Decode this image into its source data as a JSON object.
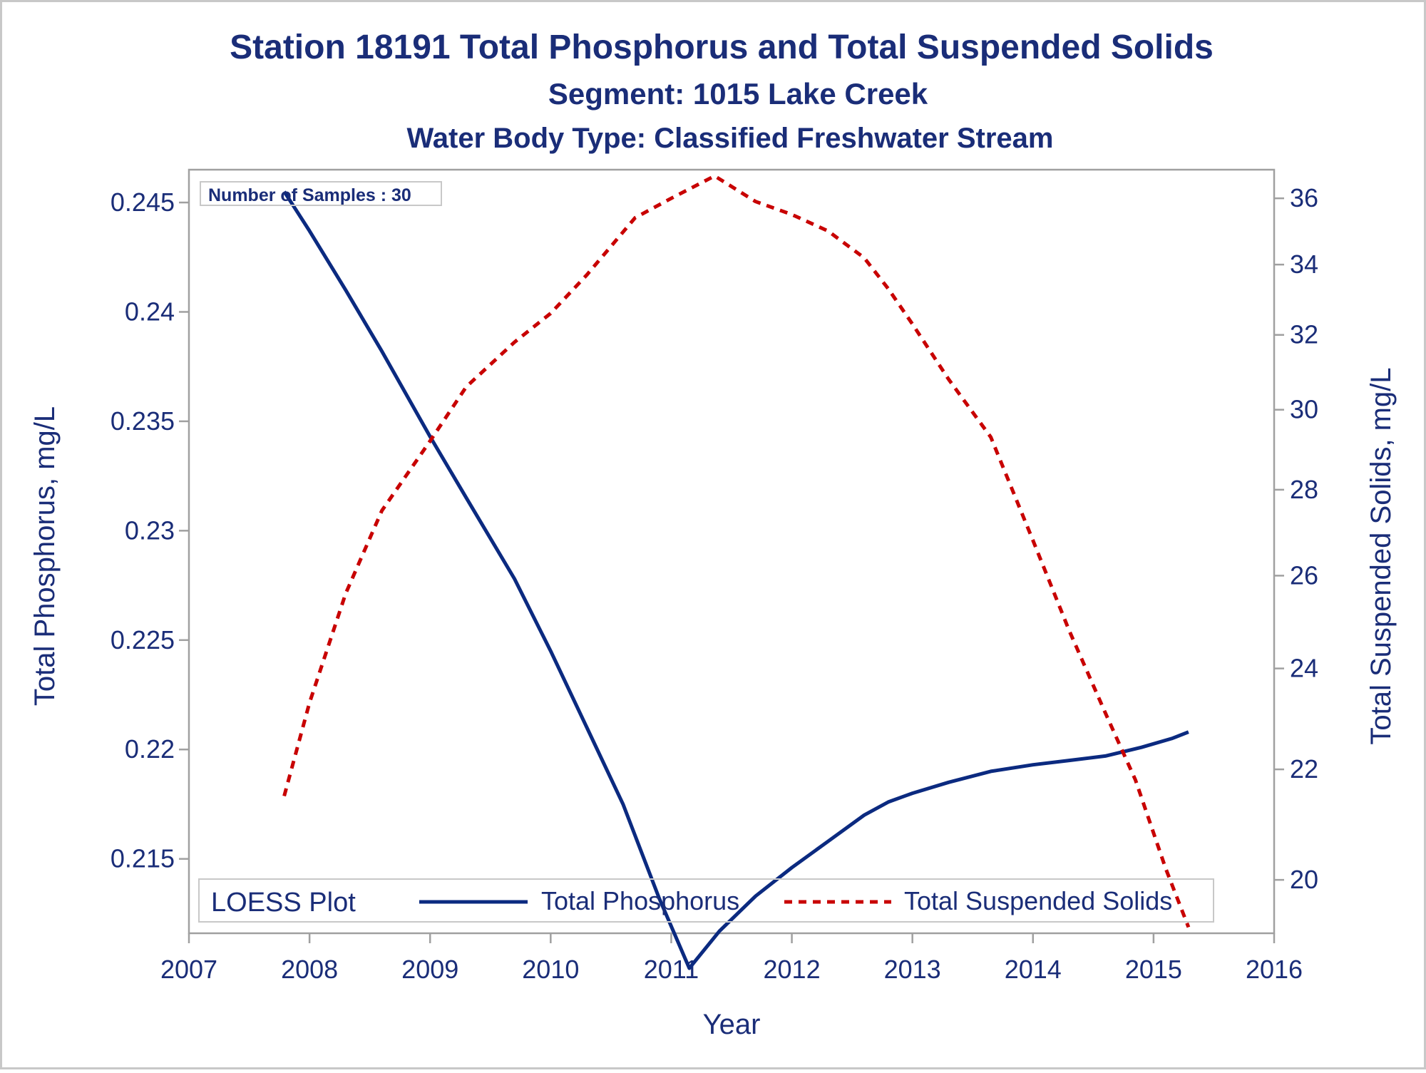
{
  "chart_data": {
    "type": "line",
    "title": "Station 18191  Total Phosphorus and Total Suspended Solids",
    "subtitle": "Segment: 1015  Lake Creek",
    "subtitle2": "Water Body Type: Classified Freshwater Stream",
    "xlabel": "Year",
    "ylabel_left": "Total Phosphorus, mg/L",
    "ylabel_right": "Total Suspended Solids, mg/L",
    "x_ticks": [
      "2007",
      "2008",
      "2009",
      "2010",
      "2011",
      "2012",
      "2013",
      "2014",
      "2015",
      "2016"
    ],
    "y_left_ticks": [
      "0.215",
      "0.22",
      "0.225",
      "0.23",
      "0.235",
      "0.24",
      "0.245"
    ],
    "y_right_ticks": [
      "20",
      "22",
      "24",
      "26",
      "28",
      "30",
      "32",
      "34",
      "36"
    ],
    "xlim": [
      2007,
      2016
    ],
    "ylim_left": [
      0.2116,
      0.2465
    ],
    "ylim_right": [
      19.1,
      36.9
    ],
    "right_axis_scale": "log",
    "annotation": "Number of Samples : 30",
    "legend": {
      "title": "LOESS Plot",
      "position": "bottom-inside",
      "entries": [
        "Total Phosphorus",
        "Total Suspended Solids"
      ]
    },
    "colors": {
      "text": "#1a2d78",
      "series1": "#0b2a80",
      "series2": "#c80000",
      "frame": "#a0a0a0"
    },
    "series": [
      {
        "name": "Total Phosphorus",
        "axis": "left",
        "style": "solid",
        "points": [
          [
            2007.79,
            0.2455
          ],
          [
            2008.0,
            0.2437
          ],
          [
            2008.3,
            0.241
          ],
          [
            2008.6,
            0.2382
          ],
          [
            2009.0,
            0.2343
          ],
          [
            2009.3,
            0.2315
          ],
          [
            2009.7,
            0.2278
          ],
          [
            2010.0,
            0.2245
          ],
          [
            2010.3,
            0.221
          ],
          [
            2010.6,
            0.2175
          ],
          [
            2010.9,
            0.2132
          ],
          [
            2011.15,
            0.21
          ],
          [
            2011.4,
            0.2117
          ],
          [
            2011.7,
            0.2133
          ],
          [
            2012.0,
            0.2146
          ],
          [
            2012.3,
            0.2158
          ],
          [
            2012.6,
            0.217
          ],
          [
            2012.8,
            0.2176
          ],
          [
            2013.0,
            0.218
          ],
          [
            2013.3,
            0.2185
          ],
          [
            2013.65,
            0.219
          ],
          [
            2014.0,
            0.2193
          ],
          [
            2014.3,
            0.2195
          ],
          [
            2014.6,
            0.2197
          ],
          [
            2014.9,
            0.2201
          ],
          [
            2015.15,
            0.2205
          ],
          [
            2015.29,
            0.2208
          ]
        ]
      },
      {
        "name": "Total Suspended Solids",
        "axis": "right",
        "style": "dashed",
        "points": [
          [
            2007.79,
            21.5
          ],
          [
            2008.0,
            23.3
          ],
          [
            2008.3,
            25.6
          ],
          [
            2008.6,
            27.5
          ],
          [
            2009.0,
            29.2
          ],
          [
            2009.3,
            30.6
          ],
          [
            2009.7,
            31.8
          ],
          [
            2010.0,
            32.6
          ],
          [
            2010.3,
            33.7
          ],
          [
            2010.7,
            35.4
          ],
          [
            2011.0,
            36.0
          ],
          [
            2011.36,
            36.7
          ],
          [
            2011.7,
            35.9
          ],
          [
            2012.0,
            35.5
          ],
          [
            2012.3,
            35.0
          ],
          [
            2012.6,
            34.2
          ],
          [
            2012.8,
            33.3
          ],
          [
            2013.0,
            32.3
          ],
          [
            2013.3,
            30.8
          ],
          [
            2013.65,
            29.3
          ],
          [
            2014.0,
            26.8
          ],
          [
            2014.3,
            24.8
          ],
          [
            2014.6,
            23.1
          ],
          [
            2014.85,
            21.8
          ],
          [
            2015.1,
            20.2
          ],
          [
            2015.29,
            19.2
          ]
        ]
      }
    ]
  }
}
